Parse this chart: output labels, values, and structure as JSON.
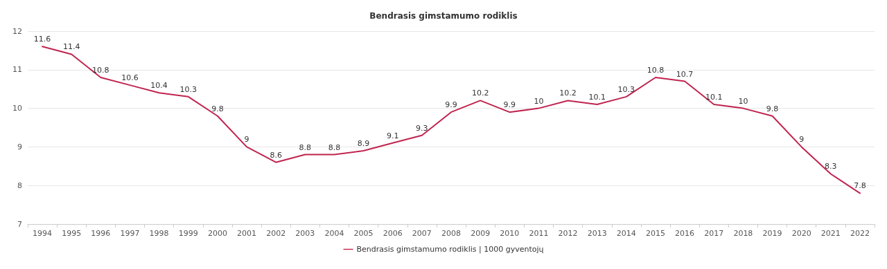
{
  "chart_data": {
    "type": "line",
    "title": "Bendrasis gimstamumo rodiklis",
    "categories": [
      "1994",
      "1995",
      "1996",
      "1997",
      "1998",
      "1999",
      "2000",
      "2001",
      "2002",
      "2003",
      "2004",
      "2005",
      "2006",
      "2007",
      "2008",
      "2009",
      "2010",
      "2011",
      "2012",
      "2013",
      "2014",
      "2015",
      "2016",
      "2017",
      "2018",
      "2019",
      "2020",
      "2021",
      "2022"
    ],
    "series": [
      {
        "name": "Bendrasis gimstamumo rodiklis | 1000 gyventojų",
        "color": "#c0234e",
        "values": [
          11.6,
          11.4,
          10.8,
          10.6,
          10.4,
          10.3,
          9.8,
          9,
          8.6,
          8.8,
          8.8,
          8.9,
          9.1,
          9.3,
          9.9,
          10.2,
          9.9,
          10,
          10.2,
          10.1,
          10.3,
          10.8,
          10.7,
          10.1,
          10,
          9.8,
          9,
          8.3,
          7.8
        ]
      }
    ],
    "ylim": [
      7,
      12
    ],
    "yticks": [
      7,
      8,
      9,
      10,
      11,
      12
    ],
    "grid": "y",
    "legend": "bottom",
    "marker": "none",
    "line_style": "solid",
    "data_labels": true
  }
}
